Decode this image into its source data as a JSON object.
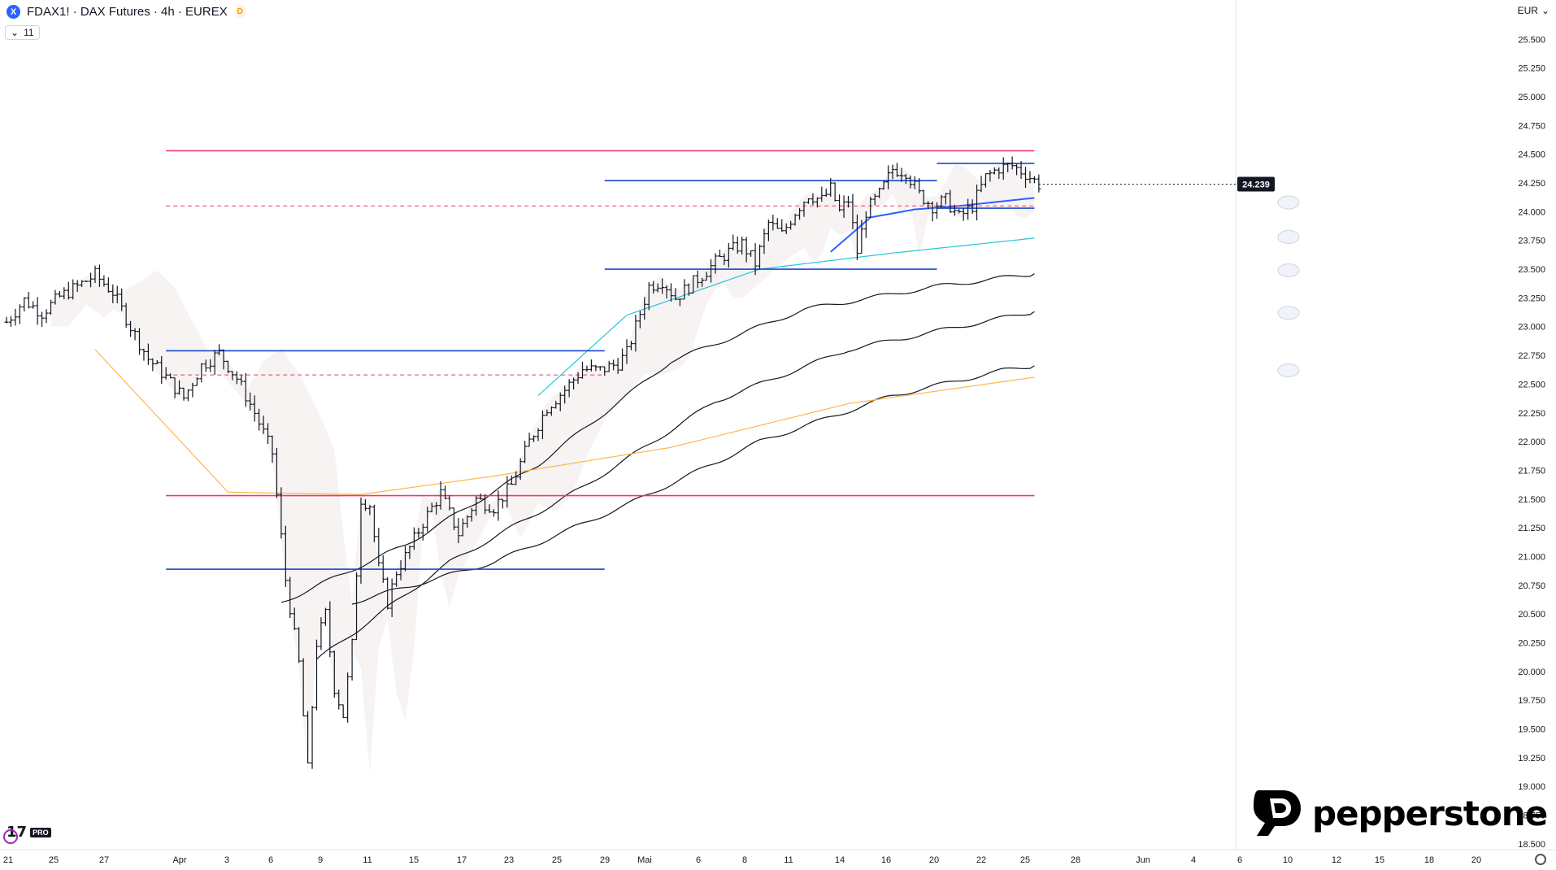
{
  "header": {
    "symbol": "FDAX1! · DAX Futures · 4h · EUREX",
    "symbol_icon": "X",
    "badge": "D",
    "indicators_count": "11",
    "currency": "EUR"
  },
  "brand": {
    "name": "pepperstone"
  },
  "watermark": {
    "label": "PRO"
  },
  "colors": {
    "red_line": "#f23665",
    "blue_line": "#1848cc",
    "cyan_line": "#26c6da",
    "ma_black": "#131722",
    "ma_orange": "#ffb74d",
    "ma_blue": "#2962ff",
    "last_price_bg": "#131722"
  },
  "chart_data": {
    "type": "candlestick",
    "title": "",
    "y_ticks": [
      "25.500",
      "25.250",
      "25.000",
      "24.750",
      "24.500",
      "24.250",
      "24.000",
      "23.750",
      "23.500",
      "23.250",
      "23.000",
      "22.750",
      "22.500",
      "22.250",
      "22.000",
      "21.750",
      "21.500",
      "21.250",
      "21.000",
      "20.750",
      "20.500",
      "20.250",
      "20.000",
      "19.750",
      "19.500",
      "19.250",
      "19.000",
      "18.750",
      "18.500"
    ],
    "y_tick_values": [
      25500,
      25250,
      25000,
      24750,
      24500,
      24250,
      24000,
      23750,
      23500,
      23250,
      23000,
      22750,
      22500,
      22250,
      22000,
      21750,
      21500,
      21250,
      21000,
      20750,
      20500,
      20250,
      20000,
      19750,
      19500,
      19250,
      19000,
      18750,
      18500
    ],
    "ylim": [
      18450,
      25700
    ],
    "x_ticks": [
      "21",
      "25",
      "27",
      "Apr",
      "3",
      "6",
      "9",
      "11",
      "15",
      "17",
      "23",
      "25",
      "29",
      "Mai",
      "6",
      "8",
      "11",
      "14",
      "16",
      "20",
      "22",
      "25",
      "28",
      "Jun",
      "4",
      "6",
      "10",
      "12",
      "15",
      "18",
      "20"
    ],
    "last_price": "24.239",
    "last_price_value": 24239,
    "price_path": [
      [
        0,
        23040
      ],
      [
        4,
        23230
      ],
      [
        8,
        23120
      ],
      [
        12,
        23260
      ],
      [
        16,
        23350
      ],
      [
        20,
        23450
      ],
      [
        24,
        23300
      ],
      [
        28,
        23000
      ],
      [
        32,
        22720
      ],
      [
        36,
        22560
      ],
      [
        40,
        22380
      ],
      [
        44,
        22660
      ],
      [
        48,
        22770
      ],
      [
        52,
        22550
      ],
      [
        56,
        22250
      ],
      [
        60,
        21900
      ],
      [
        63,
        20800
      ],
      [
        66,
        20070
      ],
      [
        68,
        19150
      ],
      [
        70,
        20250
      ],
      [
        72,
        20500
      ],
      [
        74,
        19860
      ],
      [
        76,
        19620
      ],
      [
        78,
        20230
      ],
      [
        80,
        21500
      ],
      [
        82,
        21450
      ],
      [
        84,
        20900
      ],
      [
        86,
        20600
      ],
      [
        88,
        20870
      ],
      [
        90,
        21000
      ],
      [
        94,
        21300
      ],
      [
        98,
        21550
      ],
      [
        102,
        21200
      ],
      [
        106,
        21500
      ],
      [
        110,
        21430
      ],
      [
        114,
        21620
      ],
      [
        118,
        22000
      ],
      [
        122,
        22300
      ],
      [
        126,
        22450
      ],
      [
        130,
        22630
      ],
      [
        134,
        22620
      ],
      [
        138,
        22680
      ],
      [
        140,
        22770
      ],
      [
        142,
        23000
      ],
      [
        145,
        23350
      ],
      [
        148,
        23400
      ],
      [
        151,
        23250
      ],
      [
        154,
        23350
      ],
      [
        157,
        23450
      ],
      [
        160,
        23560
      ],
      [
        163,
        23650
      ],
      [
        166,
        23720
      ],
      [
        169,
        23550
      ],
      [
        172,
        23900
      ],
      [
        175,
        23800
      ],
      [
        178,
        24000
      ],
      [
        181,
        24150
      ],
      [
        184,
        24100
      ],
      [
        186,
        24200
      ],
      [
        188,
        24000
      ],
      [
        190,
        24100
      ],
      [
        192,
        23650
      ],
      [
        194,
        24000
      ],
      [
        197,
        24150
      ],
      [
        200,
        24370
      ],
      [
        203,
        24350
      ],
      [
        206,
        24150
      ],
      [
        209,
        24050
      ],
      [
        212,
        24100
      ],
      [
        215,
        23950
      ],
      [
        218,
        24050
      ],
      [
        221,
        24300
      ],
      [
        224,
        24380
      ],
      [
        227,
        24400
      ],
      [
        230,
        24330
      ],
      [
        233,
        24239
      ]
    ],
    "levels": [
      {
        "kind": "solid",
        "color": "red",
        "value": 24530,
        "from": 36,
        "to": 232
      },
      {
        "kind": "dashed",
        "color": "red",
        "value": 24050,
        "from": 36,
        "to": 232
      },
      {
        "kind": "solid",
        "color": "blue",
        "value": 24270,
        "from": 135,
        "to": 210
      },
      {
        "kind": "solid",
        "color": "blue",
        "value": 23500,
        "from": 135,
        "to": 210
      },
      {
        "kind": "solid",
        "color": "blue",
        "value": 22790,
        "from": 36,
        "to": 135
      },
      {
        "kind": "dashed",
        "color": "red",
        "value": 22580,
        "from": 36,
        "to": 135
      },
      {
        "kind": "solid",
        "color": "red",
        "value": 21530,
        "from": 36,
        "to": 232
      },
      {
        "kind": "solid",
        "color": "blue",
        "value": 20890,
        "from": 36,
        "to": 135
      },
      {
        "kind": "solid",
        "color": "blue",
        "value": 24420,
        "from": 210,
        "to": 232
      },
      {
        "kind": "solid",
        "color": "blue",
        "value": 24030,
        "from": 210,
        "to": 232
      }
    ],
    "moving_averages": [
      {
        "color": "black",
        "points": [
          [
            62,
            20600
          ],
          [
            90,
            21100
          ],
          [
            120,
            21800
          ],
          [
            150,
            22700
          ],
          [
            180,
            23150
          ],
          [
            210,
            23350
          ],
          [
            232,
            23460
          ]
        ]
      },
      {
        "color": "black",
        "points": [
          [
            70,
            20100
          ],
          [
            100,
            20950
          ],
          [
            130,
            21600
          ],
          [
            160,
            22350
          ],
          [
            190,
            22800
          ],
          [
            215,
            23000
          ],
          [
            232,
            23130
          ]
        ]
      },
      {
        "color": "black",
        "points": [
          [
            78,
            20600
          ],
          [
            110,
            20950
          ],
          [
            140,
            21450
          ],
          [
            170,
            22000
          ],
          [
            200,
            22400
          ],
          [
            225,
            22620
          ],
          [
            232,
            22660
          ]
        ]
      },
      {
        "color": "orange",
        "points": [
          [
            20,
            22800
          ],
          [
            50,
            21560
          ],
          [
            80,
            21540
          ],
          [
            110,
            21700
          ],
          [
            150,
            21950
          ],
          [
            190,
            22330
          ],
          [
            232,
            22560
          ]
        ]
      },
      {
        "color": "cyan",
        "points": [
          [
            120,
            22400
          ],
          [
            140,
            23100
          ],
          [
            170,
            23500
          ],
          [
            200,
            23640
          ],
          [
            232,
            23770
          ]
        ]
      },
      {
        "color": "blue",
        "points": [
          [
            186,
            23650
          ],
          [
            195,
            23950
          ],
          [
            205,
            24020
          ],
          [
            215,
            24050
          ],
          [
            232,
            24120
          ]
        ]
      }
    ],
    "grid": false,
    "legend": "none"
  }
}
